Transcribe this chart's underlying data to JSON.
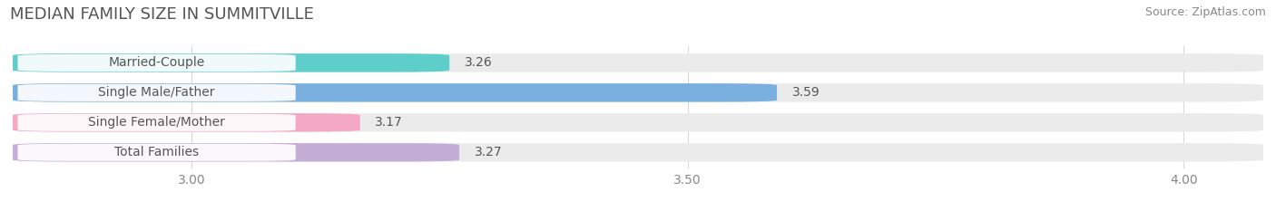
{
  "title": "MEDIAN FAMILY SIZE IN SUMMITVILLE",
  "source": "Source: ZipAtlas.com",
  "categories": [
    "Married-Couple",
    "Single Male/Father",
    "Single Female/Mother",
    "Total Families"
  ],
  "values": [
    3.26,
    3.59,
    3.17,
    3.27
  ],
  "bar_colors": [
    "#5ececa",
    "#7ab0e0",
    "#f4a8c4",
    "#c4aed8"
  ],
  "xlim_min": 2.82,
  "xlim_max": 4.08,
  "xticks": [
    3.0,
    3.5,
    4.0
  ],
  "background_color": "#ffffff",
  "bar_bg_color": "#ebebeb",
  "title_fontsize": 13,
  "source_fontsize": 9,
  "label_fontsize": 10,
  "value_fontsize": 10,
  "tick_fontsize": 10,
  "bar_height": 0.62,
  "title_color": "#555555",
  "source_color": "#888888",
  "label_color": "#555555",
  "value_color": "#555555",
  "tick_color": "#888888",
  "grid_color": "#d8d8d8"
}
